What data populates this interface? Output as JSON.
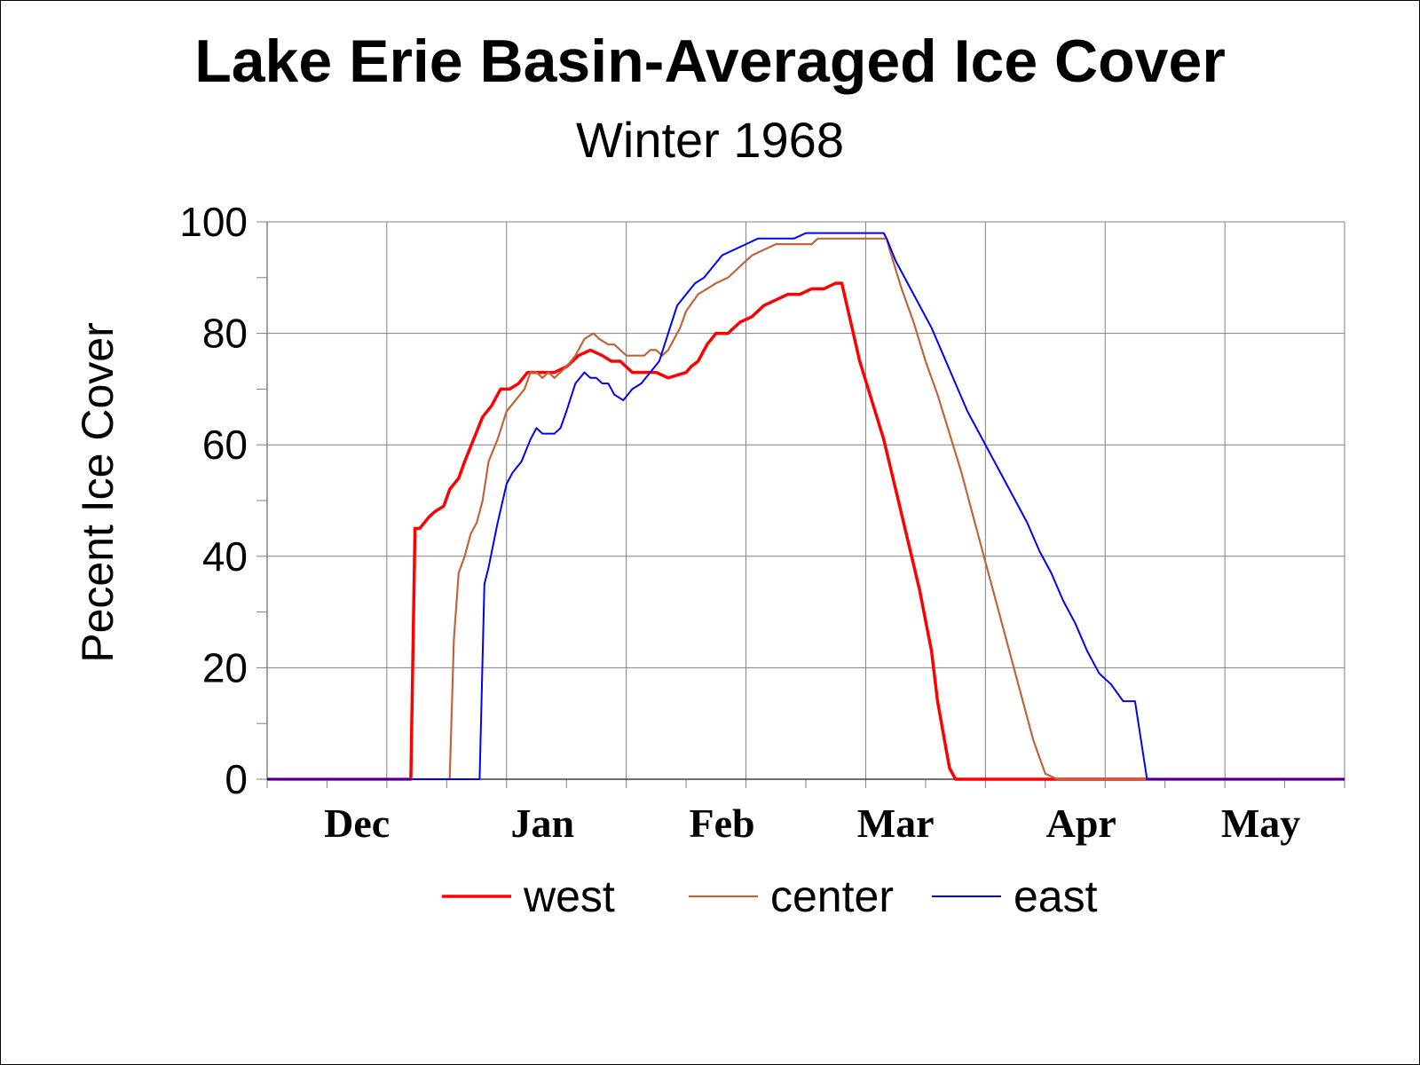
{
  "chart_data": {
    "type": "line",
    "title": "Lake Erie Basin-Averaged Ice Cover",
    "subtitle": "Winter 1968",
    "xlabel": "",
    "ylabel": "Pecent Ice Cover",
    "ylim": [
      0,
      100
    ],
    "yticks": [
      "0",
      "20",
      "40",
      "60",
      "80",
      "100"
    ],
    "xlim": [
      0,
      180
    ],
    "month_labels": [
      {
        "label": "Dec",
        "day": 15
      },
      {
        "label": "Jan",
        "day": 46
      },
      {
        "label": "Feb",
        "day": 76
      },
      {
        "label": "Mar",
        "day": 105
      },
      {
        "label": "Apr",
        "day": 136
      },
      {
        "label": "May",
        "day": 166
      }
    ],
    "grid": true,
    "legend_position": "bottom",
    "series": [
      {
        "name": "west",
        "color": "#ff0000",
        "x": [
          0,
          24,
          24.7,
          25.5,
          27,
          28,
          29.5,
          30.5,
          32,
          33,
          34.5,
          36,
          37.5,
          39,
          40.5,
          42,
          43.5,
          45,
          46,
          48,
          50,
          52,
          54,
          56,
          57.5,
          59,
          61,
          62.5,
          64,
          65,
          67,
          70,
          70.8,
          72,
          73.5,
          75,
          77,
          79,
          81,
          83,
          85,
          87,
          89,
          91,
          93,
          95,
          96,
          97.5,
          99,
          101,
          103,
          105,
          107,
          109,
          111,
          112,
          113,
          114,
          115,
          180
        ],
        "y": [
          0,
          0,
          45,
          45,
          47,
          48,
          49,
          52,
          54,
          57,
          61,
          65,
          67,
          70,
          70,
          71,
          73,
          73,
          73,
          73,
          74,
          76,
          77,
          76,
          75,
          75,
          73,
          73,
          73,
          73,
          72,
          73,
          74,
          75,
          78,
          80,
          80,
          82,
          83,
          85,
          86,
          87,
          87,
          88,
          88,
          89,
          89,
          82,
          75,
          68,
          61,
          52,
          43,
          34,
          23,
          14,
          8,
          2,
          0,
          0
        ]
      },
      {
        "name": "center",
        "color": "#c0653a",
        "x": [
          0,
          30.5,
          31.2,
          32,
          33,
          34,
          35,
          36,
          37,
          38.5,
          40,
          41.5,
          43,
          44,
          45,
          46,
          47,
          48,
          49,
          50,
          51.5,
          53,
          54.5,
          55.5,
          57,
          58,
          60,
          62,
          63,
          64,
          65,
          66,
          67,
          68,
          69,
          70,
          72,
          73.5,
          75,
          77,
          79,
          81,
          83,
          85,
          87,
          89,
          91,
          92,
          94,
          97,
          100,
          103,
          103.5,
          104,
          106,
          108,
          110,
          112,
          114,
          116,
          118,
          120,
          122,
          124,
          126,
          128,
          130,
          132,
          134,
          136,
          138,
          139,
          140,
          141,
          180
        ],
        "y": [
          0,
          0,
          25,
          37,
          40,
          44,
          46,
          50,
          57,
          61,
          66,
          68,
          70,
          73,
          73,
          72,
          73,
          72,
          73,
          74,
          76,
          79,
          80,
          79,
          78,
          78,
          76,
          76,
          76,
          77,
          77,
          76,
          77,
          79,
          81,
          84,
          87,
          88,
          89,
          90,
          92,
          94,
          95,
          96,
          96,
          96,
          96,
          97,
          97,
          97,
          97,
          97,
          97,
          95,
          88,
          82,
          75,
          69,
          62,
          55,
          47,
          39,
          31,
          23,
          15,
          7,
          1,
          0,
          0,
          0,
          0,
          0,
          0,
          0,
          0
        ]
      },
      {
        "name": "east",
        "color": "#0000ff",
        "x": [
          0,
          35.5,
          36.3,
          37,
          38.5,
          40,
          41,
          42.5,
          44,
          45,
          46,
          47,
          48,
          49,
          50,
          51.5,
          53,
          54,
          55,
          56,
          57,
          58,
          59.5,
          61,
          62.5,
          64,
          65.5,
          67,
          68.5,
          70,
          71.5,
          73,
          74.5,
          76,
          78,
          80,
          82,
          84,
          86,
          88,
          90,
          92,
          93.5,
          95,
          97,
          99,
          101,
          103,
          103.5,
          105,
          107,
          109,
          111,
          113,
          115,
          117,
          119,
          121,
          123,
          125,
          127,
          129,
          131,
          133,
          135,
          137,
          139,
          141,
          143,
          145,
          147,
          149,
          150,
          151,
          152,
          180
        ],
        "y": [
          0,
          0,
          35,
          38,
          46,
          53,
          55,
          57,
          61,
          63,
          62,
          62,
          62,
          63,
          66,
          71,
          73,
          72,
          72,
          71,
          71,
          69,
          68,
          70,
          71,
          73,
          75,
          80,
          85,
          87,
          89,
          90,
          92,
          94,
          95,
          96,
          97,
          97,
          97,
          97,
          98,
          98,
          98,
          98,
          98,
          98,
          98,
          98,
          97,
          93,
          89,
          85,
          81,
          76,
          71,
          66,
          62,
          58,
          54,
          50,
          46,
          41,
          37,
          32,
          28,
          23,
          19,
          17,
          14,
          14,
          0,
          0,
          0,
          0,
          0,
          0
        ]
      }
    ]
  }
}
